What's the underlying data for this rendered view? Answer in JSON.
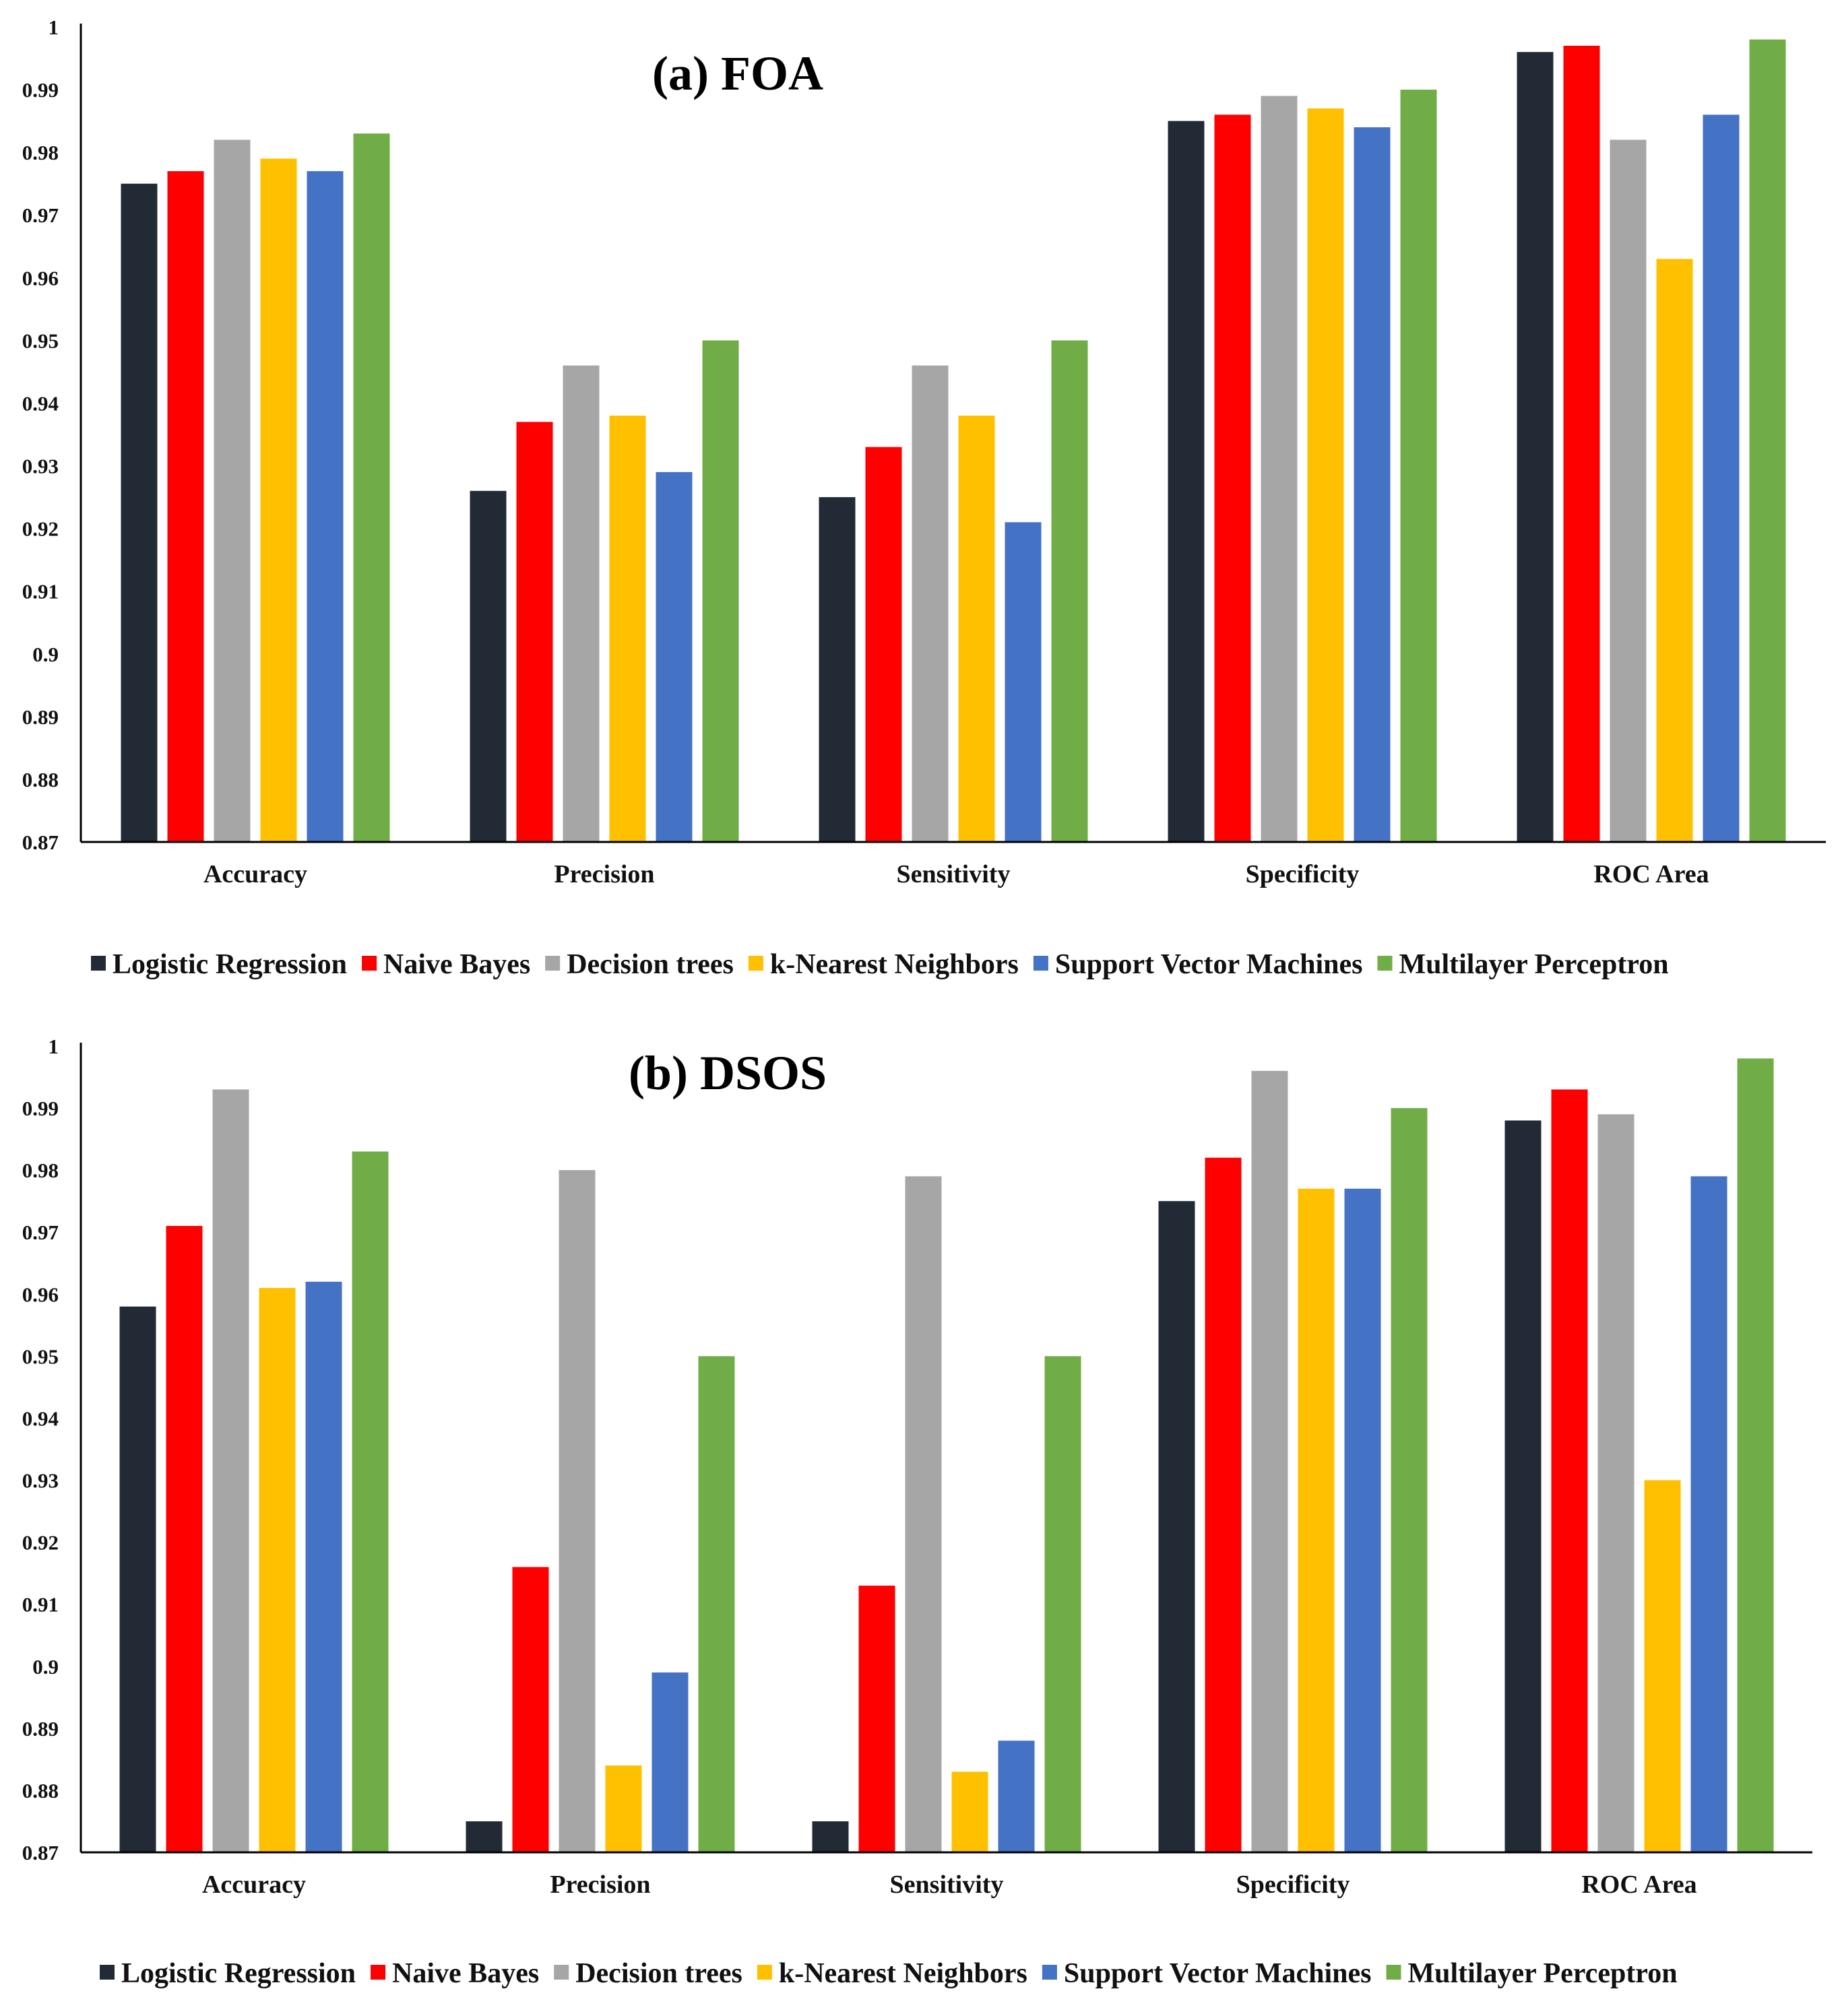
{
  "chart_data": [
    {
      "type": "bar",
      "title": "(a) FOA",
      "xlabel": "",
      "ylabel": "",
      "ylim": [
        0.87,
        1
      ],
      "yticks": [
        "0.87",
        "0.88",
        "0.89",
        "0.9",
        "0.91",
        "0.92",
        "0.93",
        "0.94",
        "0.95",
        "0.96",
        "0.97",
        "0.98",
        "0.99",
        "1"
      ],
      "categories": [
        "Accuracy",
        "Precision",
        "Sensitivity",
        "Specificity",
        "ROC Area"
      ],
      "grid": false,
      "legend_position": "bottom",
      "series": [
        {
          "name": "Logistic Regression",
          "color": "#222a36",
          "values": [
            0.975,
            0.926,
            0.925,
            0.985,
            0.996
          ]
        },
        {
          "name": "Naive Bayes",
          "color": "#ff0000",
          "values": [
            0.977,
            0.937,
            0.933,
            0.986,
            0.997
          ]
        },
        {
          "name": "Decision trees",
          "color": "#a6a6a6",
          "values": [
            0.982,
            0.946,
            0.946,
            0.989,
            0.982
          ]
        },
        {
          "name": "k-Nearest Neighbors",
          "color": "#ffc000",
          "values": [
            0.979,
            0.938,
            0.938,
            0.987,
            0.963
          ]
        },
        {
          "name": "Support Vector Machines",
          "color": "#4472c4",
          "values": [
            0.977,
            0.929,
            0.921,
            0.984,
            0.986
          ]
        },
        {
          "name": "Multilayer Perceptron",
          "color": "#70ad47",
          "values": [
            0.983,
            0.95,
            0.95,
            0.99,
            0.998
          ]
        }
      ]
    },
    {
      "type": "bar",
      "title": "(b) DSOS",
      "xlabel": "",
      "ylabel": "",
      "ylim": [
        0.87,
        1
      ],
      "yticks": [
        "0.87",
        "0.88",
        "0.89",
        "0.9",
        "0.91",
        "0.92",
        "0.93",
        "0.94",
        "0.95",
        "0.96",
        "0.97",
        "0.98",
        "0.99",
        "1"
      ],
      "categories": [
        "Accuracy",
        "Precision",
        "Sensitivity",
        "Specificity",
        "ROC Area"
      ],
      "grid": false,
      "legend_position": "bottom",
      "series": [
        {
          "name": "Logistic Regression",
          "color": "#222a36",
          "values": [
            0.958,
            0.875,
            0.875,
            0.975,
            0.988
          ]
        },
        {
          "name": "Naive Bayes",
          "color": "#ff0000",
          "values": [
            0.971,
            0.916,
            0.913,
            0.982,
            0.993
          ]
        },
        {
          "name": "Decision trees",
          "color": "#a6a6a6",
          "values": [
            0.993,
            0.98,
            0.979,
            0.996,
            0.989
          ]
        },
        {
          "name": "k-Nearest Neighbors",
          "color": "#ffc000",
          "values": [
            0.961,
            0.884,
            0.883,
            0.977,
            0.93
          ]
        },
        {
          "name": "Support Vector Machines",
          "color": "#4472c4",
          "values": [
            0.962,
            0.899,
            0.888,
            0.977,
            0.979
          ]
        },
        {
          "name": "Multilayer Perceptron",
          "color": "#70ad47",
          "values": [
            0.983,
            0.95,
            0.95,
            0.99,
            0.998
          ]
        }
      ]
    }
  ]
}
